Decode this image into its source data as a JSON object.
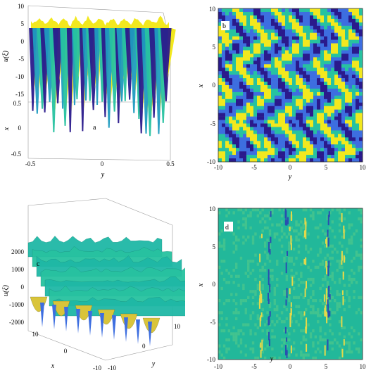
{
  "chart_data": [
    {
      "id": "a",
      "type": "surface3d",
      "panel_label": "a",
      "xlabel": "y",
      "ylabel": "x",
      "zlabel": "u(ξ)",
      "xlim": [
        -0.5,
        0.5
      ],
      "ylim": [
        -0.5,
        0.5
      ],
      "zlim": [
        -15,
        10
      ],
      "x_ticks": [
        "-0.5",
        "0",
        "0.5"
      ],
      "y_ticks": [
        "0.5",
        "0",
        "-0.5"
      ],
      "z_ticks": [
        "10",
        "5",
        "0",
        "-5",
        "-10",
        "-15"
      ],
      "colors": [
        "#2a1a8c",
        "#1f9bc0",
        "#27c2a0",
        "#f2e81e"
      ]
    },
    {
      "id": "b",
      "type": "heatmap",
      "panel_label": "b",
      "xlabel": "y",
      "ylabel": "x",
      "xlim": [
        -10,
        10
      ],
      "ylim": [
        -10,
        10
      ],
      "x_ticks": [
        "-10",
        "-5",
        "0",
        "5",
        "10"
      ],
      "y_ticks": [
        "10",
        "5",
        "0",
        "-5",
        "-10"
      ],
      "colors": [
        "#f2e81e",
        "#27c2a0",
        "#3d6ee0",
        "#2a1a8c"
      ]
    },
    {
      "id": "c",
      "type": "surface3d",
      "panel_label": "c",
      "xlabel": "x",
      "ylabel": "y",
      "zlabel": "u(ξ)",
      "xlim": [
        -10,
        10
      ],
      "ylim": [
        -10,
        10
      ],
      "zlim": [
        -2000,
        2000
      ],
      "x_ticks": [
        "10",
        "0",
        "-10"
      ],
      "y_ticks": [
        "10",
        "0",
        "-10"
      ],
      "z_ticks": [
        "2000",
        "1000",
        "0",
        "-1000",
        "-2000"
      ],
      "colors": [
        "#1fb8a6",
        "#27c2a0",
        "#3d6ee0",
        "#d9c43a"
      ]
    },
    {
      "id": "d",
      "type": "heatmap",
      "panel_label": "d",
      "xlabel": "y",
      "ylabel": "x",
      "xlim": [
        -10,
        10
      ],
      "ylim": [
        -10,
        10
      ],
      "x_ticks": [
        "-10",
        "-5",
        "0",
        "5",
        "10"
      ],
      "y_ticks": [
        "10",
        "5",
        "0",
        "-5",
        "-10"
      ],
      "colors": [
        "#22b89a",
        "#4fc78a",
        "#e4d84a",
        "#2a4fb0"
      ]
    }
  ]
}
